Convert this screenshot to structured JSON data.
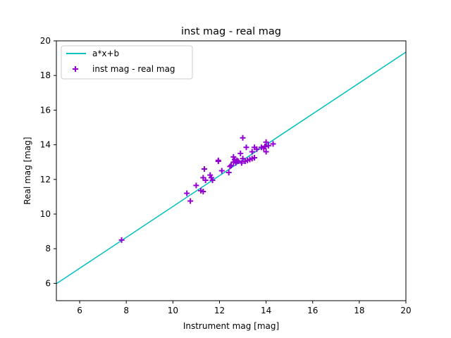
{
  "chart_data": {
    "type": "scatter",
    "title": "inst mag - real mag",
    "xlabel": "Instrument mag [mag]",
    "ylabel": "Real mag [mag]",
    "xlim": [
      5,
      20
    ],
    "ylim": [
      5,
      20
    ],
    "xticks": [
      6,
      8,
      10,
      12,
      14,
      16,
      18,
      20
    ],
    "yticks": [
      6,
      8,
      10,
      12,
      14,
      16,
      18,
      20
    ],
    "grid": false,
    "legend_placement": "top-left",
    "fit_line": {
      "name": "a*x+b",
      "color": "#00bfbf",
      "x": [
        5,
        20
      ],
      "y": [
        5.98,
        19.35
      ]
    },
    "series": [
      {
        "name": "inst mag - real mag",
        "color": "#9400d3",
        "marker": "+",
        "points": [
          [
            7.8,
            8.5
          ],
          [
            10.6,
            11.2
          ],
          [
            10.75,
            10.75
          ],
          [
            11.0,
            11.65
          ],
          [
            11.2,
            11.35
          ],
          [
            11.3,
            11.3
          ],
          [
            11.3,
            12.1
          ],
          [
            11.35,
            12.6
          ],
          [
            11.4,
            11.95
          ],
          [
            11.6,
            12.25
          ],
          [
            11.65,
            12.1
          ],
          [
            11.7,
            11.95
          ],
          [
            11.95,
            13.05
          ],
          [
            11.95,
            13.1
          ],
          [
            12.1,
            12.5
          ],
          [
            12.4,
            12.4
          ],
          [
            12.45,
            12.75
          ],
          [
            12.5,
            12.8
          ],
          [
            12.6,
            13.0
          ],
          [
            12.6,
            13.3
          ],
          [
            12.65,
            13.15
          ],
          [
            12.7,
            12.95
          ],
          [
            12.75,
            13.1
          ],
          [
            12.8,
            13.05
          ],
          [
            12.9,
            13.5
          ],
          [
            12.95,
            12.95
          ],
          [
            13.0,
            13.2
          ],
          [
            13.0,
            14.4
          ],
          [
            13.1,
            13.05
          ],
          [
            13.15,
            13.85
          ],
          [
            13.2,
            13.1
          ],
          [
            13.3,
            13.15
          ],
          [
            13.4,
            13.2
          ],
          [
            13.4,
            13.6
          ],
          [
            13.5,
            13.25
          ],
          [
            13.5,
            13.85
          ],
          [
            13.6,
            13.75
          ],
          [
            13.8,
            13.85
          ],
          [
            13.9,
            13.8
          ],
          [
            13.95,
            13.9
          ],
          [
            14.0,
            13.6
          ],
          [
            14.0,
            14.15
          ],
          [
            14.1,
            13.95
          ],
          [
            14.3,
            14.05
          ]
        ]
      }
    ]
  }
}
